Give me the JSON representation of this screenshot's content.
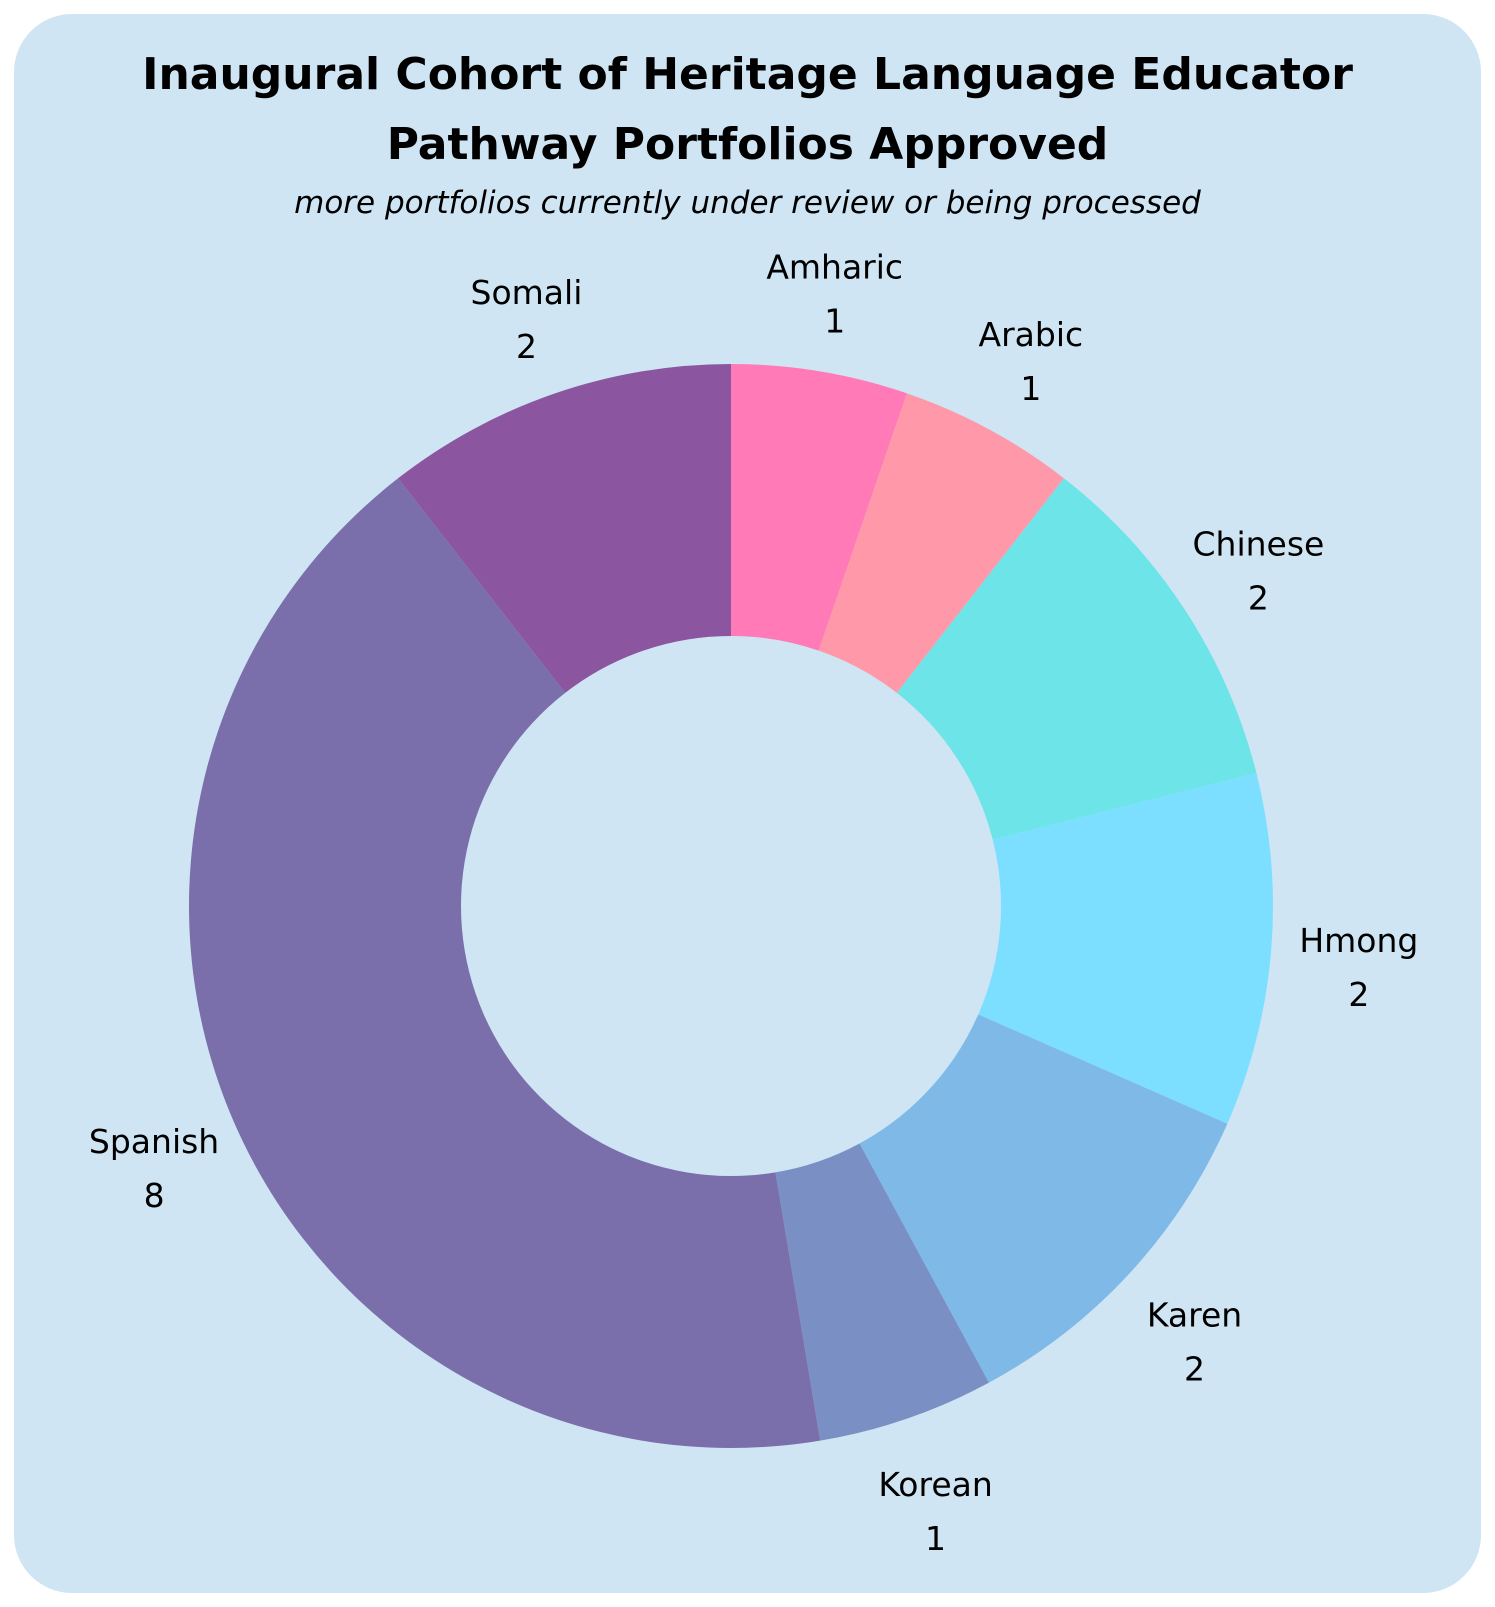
{
  "chart_data": {
    "type": "pie",
    "donut": true,
    "title": "Inaugural Cohort of Heritage Language Educator Pathway Portfolios Approved",
    "title_lines": [
      "Inaugural Cohort of Heritage Language Educator",
      "Pathway Portfolios Approved"
    ],
    "subtitle": "more portfolios currently under review or being processed",
    "background_color": "#cfe5f3",
    "legend": "none",
    "slices": [
      {
        "label": "Amharic",
        "value": 1,
        "color": "#ff7ab6"
      },
      {
        "label": "Arabic",
        "value": 1,
        "color": "#ff98a8"
      },
      {
        "label": "Chinese",
        "value": 2,
        "color": "#6ce4e8"
      },
      {
        "label": "Hmong",
        "value": 2,
        "color": "#7ddfff"
      },
      {
        "label": "Karen",
        "value": 2,
        "color": "#7fb9e8"
      },
      {
        "label": "Korean",
        "value": 1,
        "color": "#7a90c4"
      },
      {
        "label": "Spanish",
        "value": 8,
        "color": "#7a6fab"
      },
      {
        "label": "Somali",
        "value": 2,
        "color": "#8b569f"
      }
    ]
  }
}
